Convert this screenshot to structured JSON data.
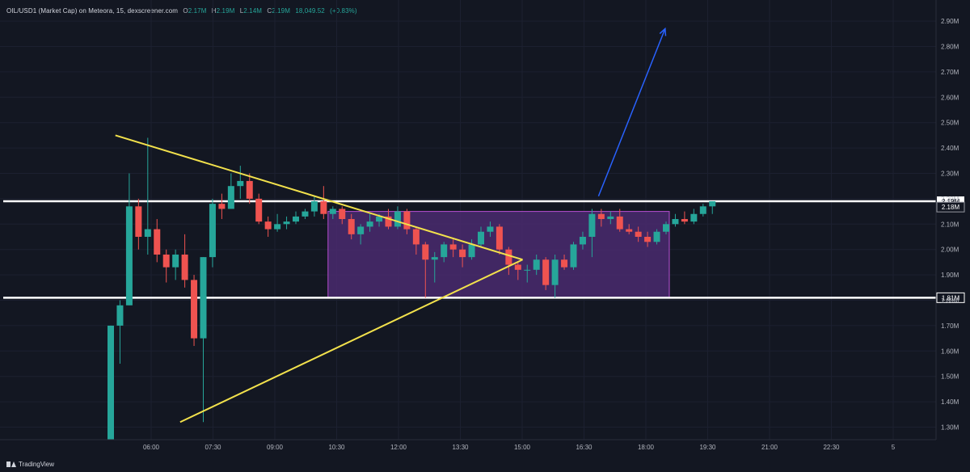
{
  "header": {
    "symbol": "OIL/USD1 (Market Cap) on Meteora, 15, dexscreener.com",
    "o_label": "O",
    "o_value": "2.17M",
    "h_label": "H",
    "h_value": "2.19M",
    "l_label": "L",
    "l_value": "2.14M",
    "c_label": "C",
    "c_value": "2.19M",
    "volume": "18,049.52",
    "change": "(+0.83%)"
  },
  "footer": {
    "brand": "TradingView"
  },
  "colors": {
    "background": "#131722",
    "up": "#26a69a",
    "down": "#ef5350",
    "trendline": "#f2e14c",
    "level": "#ffffff",
    "range_fill": "#4a2a6e",
    "range_border": "#b74fd1",
    "arrow": "#2962ff"
  },
  "chart_data": {
    "type": "candlestick",
    "ylim": [
      1.25,
      2.95
    ],
    "y_unit": "M",
    "yticks": [
      "1.30M",
      "1.40M",
      "1.50M",
      "1.60M",
      "1.70M",
      "1.80M",
      "1.90M",
      "2.00M",
      "2.10M",
      "2.20M",
      "2.30M",
      "2.40M",
      "2.50M",
      "2.60M",
      "2.70M",
      "2.80M",
      "2.90M"
    ],
    "xticks": [
      "06:00",
      "07:30",
      "09:00",
      "10:30",
      "12:00",
      "13:30",
      "15:00",
      "16:30",
      "18:00",
      "19:30",
      "21:00",
      "22:30",
      "5"
    ],
    "levels": [
      {
        "value": 2.19,
        "label": "2.19M",
        "style": "filled"
      },
      {
        "value": 1.81,
        "label": "1.81M",
        "style": "outline"
      }
    ],
    "range_box": {
      "bar_start": 24,
      "bar_end": 60,
      "top": 2.15,
      "bottom": 1.81,
      "right_label": "2.18M"
    },
    "trendlines": [
      {
        "from": {
          "bar": 0.5,
          "value": 2.45
        },
        "to": {
          "bar": 44.5,
          "value": 1.96
        }
      },
      {
        "from": {
          "bar": 7.5,
          "value": 1.32
        },
        "to": {
          "bar": 44.5,
          "value": 1.96
        }
      }
    ],
    "arrow": {
      "from": {
        "bar": 52.7,
        "value": 2.21
      },
      "to": {
        "bar": 59.9,
        "value": 2.87
      }
    },
    "candles": [
      {
        "o": 1.25,
        "h": 1.7,
        "l": 1.25,
        "c": 1.7
      },
      {
        "o": 1.7,
        "h": 1.8,
        "l": 1.55,
        "c": 1.78
      },
      {
        "o": 1.78,
        "h": 2.3,
        "l": 1.78,
        "c": 2.17
      },
      {
        "o": 2.17,
        "h": 2.2,
        "l": 2.0,
        "c": 2.05
      },
      {
        "o": 2.05,
        "h": 2.44,
        "l": 1.98,
        "c": 2.08
      },
      {
        "o": 2.08,
        "h": 2.12,
        "l": 1.95,
        "c": 1.98
      },
      {
        "o": 1.98,
        "h": 2.0,
        "l": 1.87,
        "c": 1.93
      },
      {
        "o": 1.93,
        "h": 2.0,
        "l": 1.88,
        "c": 1.98
      },
      {
        "o": 1.98,
        "h": 2.06,
        "l": 1.85,
        "c": 1.88
      },
      {
        "o": 1.88,
        "h": 1.9,
        "l": 1.62,
        "c": 1.65
      },
      {
        "o": 1.65,
        "h": 1.97,
        "l": 1.32,
        "c": 1.97
      },
      {
        "o": 1.97,
        "h": 2.2,
        "l": 1.93,
        "c": 2.18
      },
      {
        "o": 2.18,
        "h": 2.22,
        "l": 2.12,
        "c": 2.16
      },
      {
        "o": 2.16,
        "h": 2.3,
        "l": 2.16,
        "c": 2.25
      },
      {
        "o": 2.25,
        "h": 2.33,
        "l": 2.2,
        "c": 2.27
      },
      {
        "o": 2.27,
        "h": 2.3,
        "l": 2.18,
        "c": 2.2
      },
      {
        "o": 2.2,
        "h": 2.22,
        "l": 2.1,
        "c": 2.11
      },
      {
        "o": 2.11,
        "h": 2.13,
        "l": 2.05,
        "c": 2.08
      },
      {
        "o": 2.08,
        "h": 2.14,
        "l": 2.07,
        "c": 2.1
      },
      {
        "o": 2.1,
        "h": 2.13,
        "l": 2.08,
        "c": 2.11
      },
      {
        "o": 2.11,
        "h": 2.15,
        "l": 2.1,
        "c": 2.13
      },
      {
        "o": 2.13,
        "h": 2.16,
        "l": 2.12,
        "c": 2.15
      },
      {
        "o": 2.15,
        "h": 2.21,
        "l": 2.13,
        "c": 2.19
      },
      {
        "o": 2.19,
        "h": 2.25,
        "l": 2.12,
        "c": 2.14
      },
      {
        "o": 2.14,
        "h": 2.17,
        "l": 2.12,
        "c": 2.16
      },
      {
        "o": 2.16,
        "h": 2.17,
        "l": 2.1,
        "c": 2.12
      },
      {
        "o": 2.12,
        "h": 2.14,
        "l": 2.04,
        "c": 2.06
      },
      {
        "o": 2.06,
        "h": 2.1,
        "l": 2.02,
        "c": 2.09
      },
      {
        "o": 2.09,
        "h": 2.14,
        "l": 2.07,
        "c": 2.11
      },
      {
        "o": 2.11,
        "h": 2.14,
        "l": 2.09,
        "c": 2.13
      },
      {
        "o": 2.13,
        "h": 2.16,
        "l": 2.08,
        "c": 2.09
      },
      {
        "o": 2.09,
        "h": 2.17,
        "l": 2.08,
        "c": 2.15
      },
      {
        "o": 2.15,
        "h": 2.16,
        "l": 2.06,
        "c": 2.08
      },
      {
        "o": 2.08,
        "h": 2.09,
        "l": 1.98,
        "c": 2.02
      },
      {
        "o": 2.02,
        "h": 2.03,
        "l": 1.81,
        "c": 1.96
      },
      {
        "o": 1.96,
        "h": 1.99,
        "l": 1.87,
        "c": 1.97
      },
      {
        "o": 1.97,
        "h": 2.03,
        "l": 1.95,
        "c": 2.02
      },
      {
        "o": 2.02,
        "h": 2.04,
        "l": 1.97,
        "c": 2.0
      },
      {
        "o": 2.0,
        "h": 2.02,
        "l": 1.93,
        "c": 1.97
      },
      {
        "o": 1.97,
        "h": 2.04,
        "l": 1.96,
        "c": 2.02
      },
      {
        "o": 2.02,
        "h": 2.09,
        "l": 2.01,
        "c": 2.07
      },
      {
        "o": 2.07,
        "h": 2.11,
        "l": 2.05,
        "c": 2.09
      },
      {
        "o": 2.09,
        "h": 2.1,
        "l": 1.98,
        "c": 2.0
      },
      {
        "o": 2.0,
        "h": 2.01,
        "l": 1.9,
        "c": 1.94
      },
      {
        "o": 1.94,
        "h": 1.95,
        "l": 1.88,
        "c": 1.92
      },
      {
        "o": 1.92,
        "h": 1.94,
        "l": 1.87,
        "c": 1.92
      },
      {
        "o": 1.92,
        "h": 1.98,
        "l": 1.9,
        "c": 1.96
      },
      {
        "o": 1.96,
        "h": 1.97,
        "l": 1.84,
        "c": 1.86
      },
      {
        "o": 1.86,
        "h": 1.98,
        "l": 1.81,
        "c": 1.96
      },
      {
        "o": 1.96,
        "h": 1.98,
        "l": 1.92,
        "c": 1.93
      },
      {
        "o": 1.93,
        "h": 2.03,
        "l": 1.92,
        "c": 2.02
      },
      {
        "o": 2.02,
        "h": 2.07,
        "l": 2.0,
        "c": 2.05
      },
      {
        "o": 2.05,
        "h": 2.16,
        "l": 1.97,
        "c": 2.14
      },
      {
        "o": 2.14,
        "h": 2.16,
        "l": 2.09,
        "c": 2.12
      },
      {
        "o": 2.12,
        "h": 2.15,
        "l": 2.1,
        "c": 2.13
      },
      {
        "o": 2.13,
        "h": 2.16,
        "l": 2.07,
        "c": 2.08
      },
      {
        "o": 2.08,
        "h": 2.1,
        "l": 2.06,
        "c": 2.07
      },
      {
        "o": 2.07,
        "h": 2.09,
        "l": 2.03,
        "c": 2.05
      },
      {
        "o": 2.05,
        "h": 2.07,
        "l": 2.01,
        "c": 2.03
      },
      {
        "o": 2.03,
        "h": 2.08,
        "l": 2.02,
        "c": 2.07
      },
      {
        "o": 2.07,
        "h": 2.11,
        "l": 2.06,
        "c": 2.1
      },
      {
        "o": 2.1,
        "h": 2.14,
        "l": 2.09,
        "c": 2.12
      },
      {
        "o": 2.12,
        "h": 2.15,
        "l": 2.1,
        "c": 2.11
      },
      {
        "o": 2.11,
        "h": 2.16,
        "l": 2.1,
        "c": 2.14
      },
      {
        "o": 2.14,
        "h": 2.18,
        "l": 2.13,
        "c": 2.17
      },
      {
        "o": 2.17,
        "h": 2.19,
        "l": 2.14,
        "c": 2.19
      }
    ]
  }
}
